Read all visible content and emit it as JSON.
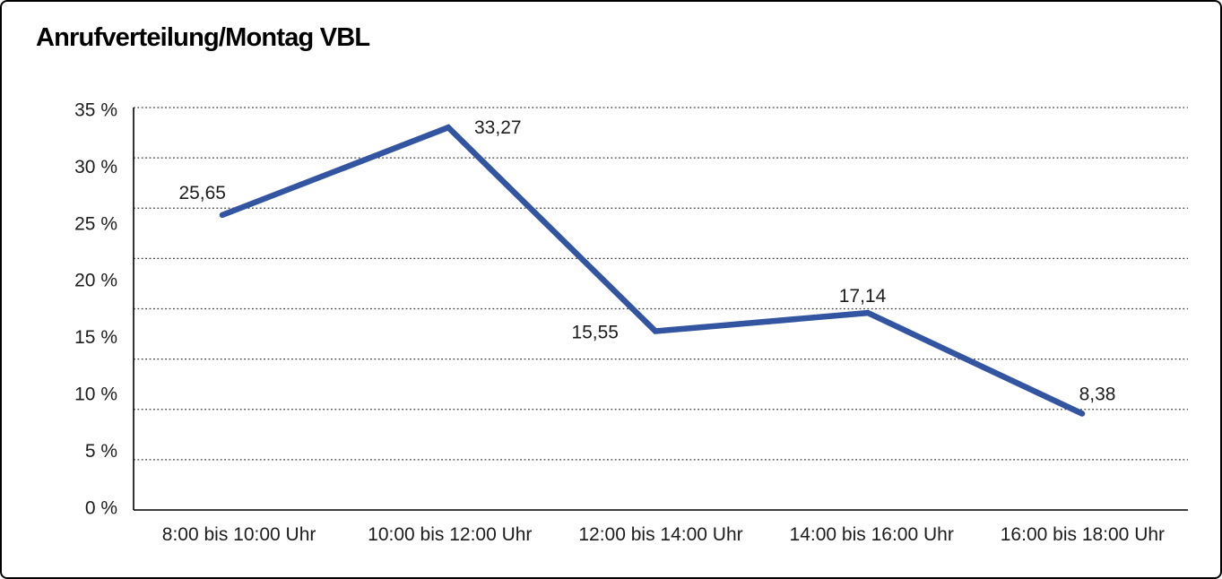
{
  "window": {
    "background": "#ffffff",
    "border_color": "#000000"
  },
  "chart_data": {
    "type": "line",
    "title": "Anrufverteilung/Montag VBL",
    "categories": [
      "8:00 bis 10:00 Uhr",
      "10:00 bis 12:00 Uhr",
      "12:00 bis 14:00 Uhr",
      "14:00 bis 16:00 Uhr",
      "16:00 bis 18:00 Uhr"
    ],
    "values": [
      25.65,
      33.27,
      15.55,
      17.14,
      8.38
    ],
    "value_labels": [
      "25,65",
      "33,27",
      "15,55",
      "17,14",
      "8,38"
    ],
    "y_tick_labels": [
      "35 %",
      "30 %",
      "25 %",
      "20 %",
      "15 %",
      "10 %",
      "5 %",
      "0 %"
    ],
    "ylim": [
      0,
      35
    ],
    "xlabel": "",
    "ylabel": "",
    "grid": "horizontal-dotted",
    "legend": "none",
    "line_color": "#3354A0",
    "gridline_color": "#3a3a3a",
    "axis_color": "#000000",
    "text_color": "#1c1c1c"
  }
}
